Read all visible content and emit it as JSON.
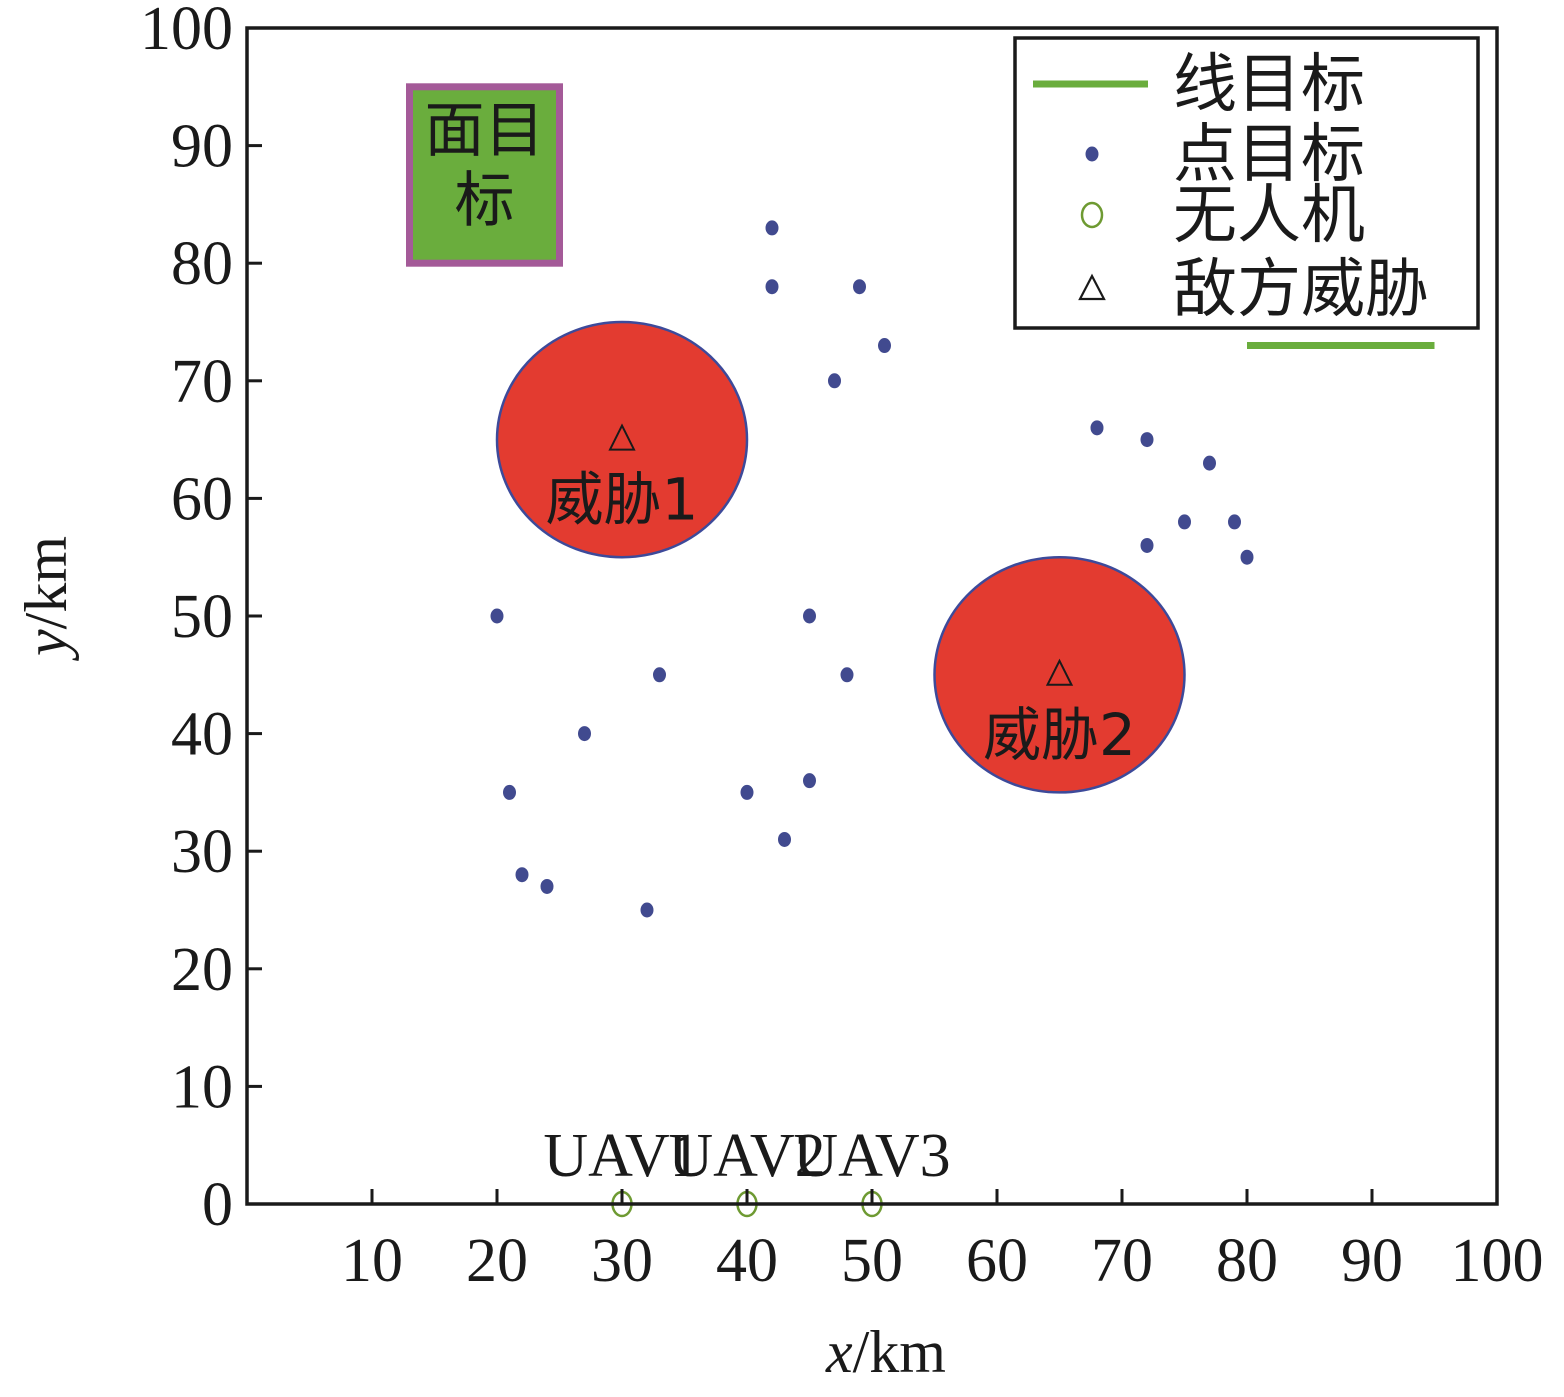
{
  "chart_data": {
    "type": "scatter",
    "xlabel": {
      "var": "x",
      "unit": "/km"
    },
    "ylabel": {
      "var": "y",
      "unit": "/km"
    },
    "xlim": [
      0,
      100
    ],
    "ylim": [
      0,
      100
    ],
    "xticks": [
      10,
      20,
      30,
      40,
      50,
      60,
      70,
      80,
      90,
      100
    ],
    "yticks": [
      0,
      10,
      20,
      30,
      40,
      50,
      60,
      70,
      80,
      90,
      100
    ],
    "grid": false,
    "legend": {
      "placement": "top-right",
      "entries": [
        {
          "label": "线目标",
          "marker": "line",
          "color": "#6aad3d"
        },
        {
          "label": "点目标",
          "marker": "dot",
          "color": "#414a8f"
        },
        {
          "label": "无人机",
          "marker": "circle",
          "color": "#6e9a32"
        },
        {
          "label": "敌方威胁",
          "marker": "triangle",
          "color": "#1a1a1a"
        }
      ]
    },
    "point_targets": {
      "color": "#414a8f",
      "points": [
        [
          42,
          83
        ],
        [
          42,
          78
        ],
        [
          49,
          78
        ],
        [
          51,
          73
        ],
        [
          47,
          70
        ],
        [
          68,
          66
        ],
        [
          72,
          65
        ],
        [
          77,
          63
        ],
        [
          75,
          58
        ],
        [
          79,
          58
        ],
        [
          72,
          56
        ],
        [
          80,
          55
        ],
        [
          20,
          50
        ],
        [
          45,
          50
        ],
        [
          33,
          45
        ],
        [
          48,
          45
        ],
        [
          27,
          40
        ],
        [
          21,
          35
        ],
        [
          40,
          35
        ],
        [
          45,
          36
        ],
        [
          43,
          31
        ],
        [
          22,
          28
        ],
        [
          24,
          27
        ],
        [
          32,
          25
        ]
      ]
    },
    "area_target": {
      "label_line1": "面目",
      "label_line2": "标",
      "x_range": [
        13,
        25
      ],
      "y_range": [
        80,
        95
      ],
      "fill": "#6aad3d",
      "border": "#a45a98"
    },
    "line_target": {
      "x_range": [
        80,
        95
      ],
      "y": 73,
      "color": "#6aad3d"
    },
    "threats": [
      {
        "label": "威胁1",
        "center": [
          30,
          65
        ],
        "radius": 10,
        "fill": "#e33b30",
        "edge": "#3d4a9a"
      },
      {
        "label": "威胁2",
        "center": [
          65,
          45
        ],
        "radius": 10,
        "fill": "#e33b30",
        "edge": "#3d4a9a"
      }
    ],
    "uavs": [
      {
        "label": "UAV1",
        "x": 30,
        "y": 0
      },
      {
        "label": "UAV2",
        "x": 40,
        "y": 0
      },
      {
        "label": "UAV3",
        "x": 50,
        "y": 0
      }
    ],
    "uav_color": "#6e9a32"
  }
}
